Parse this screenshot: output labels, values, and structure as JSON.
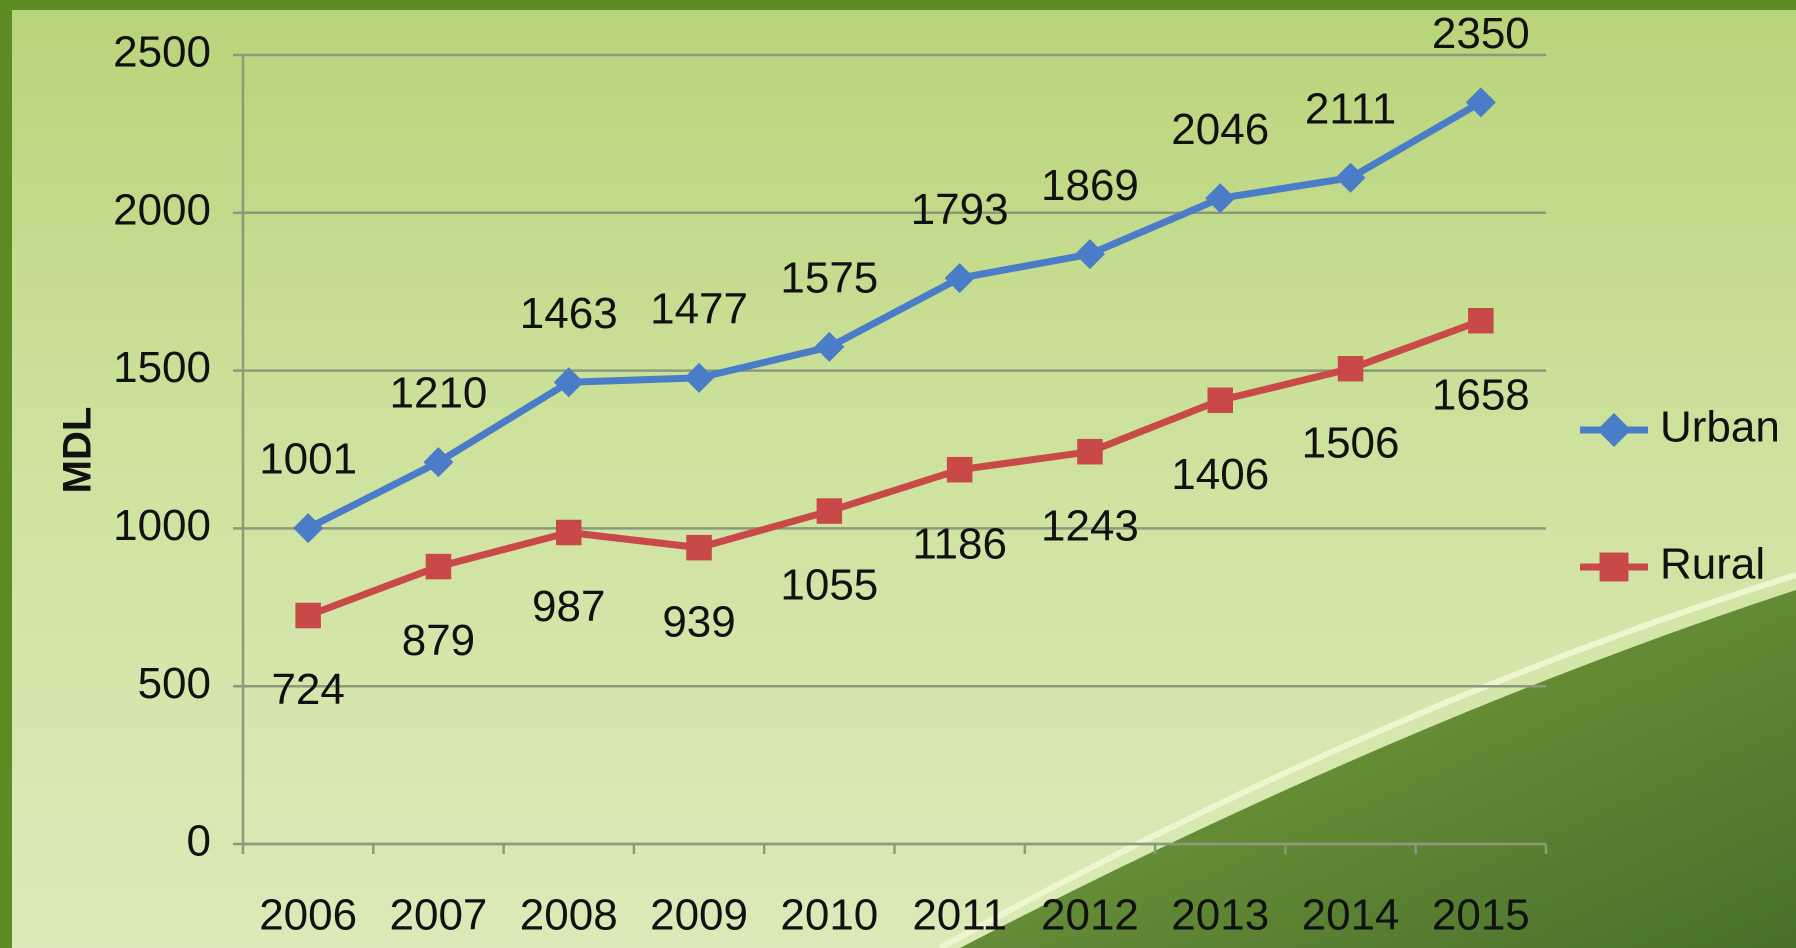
{
  "chart_data": {
    "type": "line",
    "y_label": "MDL",
    "categories": [
      "2006",
      "2007",
      "2008",
      "2009",
      "2010",
      "2011",
      "2012",
      "2013",
      "2014",
      "2015"
    ],
    "series": [
      {
        "name": "Urban",
        "color": "#4a7cc7",
        "marker": "diamond",
        "values": [
          1001,
          1210,
          1463,
          1477,
          1575,
          1793,
          1869,
          2046,
          2111,
          2350
        ]
      },
      {
        "name": "Rural",
        "color": "#c94848",
        "marker": "square",
        "values": [
          724,
          879,
          987,
          939,
          1055,
          1186,
          1243,
          1406,
          1506,
          1658
        ]
      }
    ],
    "ylim": [
      0,
      2500
    ],
    "yticks": [
      0,
      500,
      1000,
      1500,
      2000,
      2500
    ],
    "grid": true,
    "legend": "right"
  }
}
